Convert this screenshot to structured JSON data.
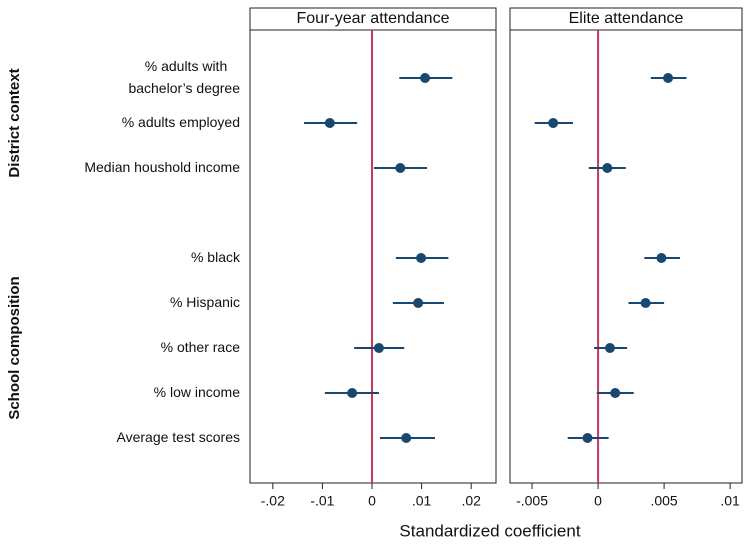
{
  "figure": {
    "xlabel": "Standardized coefficient",
    "categories": [
      "% adults with\nbachelor’s degree",
      "% adults employed",
      "Median houshold income",
      null,
      "% black",
      "% Hispanic",
      "% other race",
      "% low income",
      "Average test scores"
    ],
    "groups": [
      {
        "label": "District context",
        "rows": [
          0,
          2
        ]
      },
      {
        "label": "School composition",
        "rows": [
          4,
          8
        ]
      }
    ]
  },
  "chart_data": [
    {
      "type": "coefplot",
      "title": "Four-year attendance",
      "color": "#1a476f",
      "refline": 0,
      "refline_color": "#c8375f",
      "values": [
        0.0107,
        -0.0085,
        0.0057,
        null,
        0.0099,
        0.0093,
        0.0014,
        -0.004,
        0.0069
      ],
      "lower": [
        0.0055,
        -0.0137,
        0.0004,
        null,
        0.0048,
        0.0042,
        -0.0036,
        -0.0095,
        0.0016
      ],
      "upper": [
        0.0162,
        -0.003,
        0.0111,
        null,
        0.0154,
        0.0145,
        0.0065,
        0.0014,
        0.0127
      ],
      "xlim": [
        -0.0246,
        0.025
      ],
      "xticks": [
        {
          "value": -0.02,
          "label": "-.02"
        },
        {
          "value": -0.01,
          "label": "-.01"
        },
        0,
        {
          "value": 0.01,
          "label": ".01"
        },
        {
          "value": 0.02,
          "label": ".02"
        }
      ]
    },
    {
      "type": "coefplot",
      "title": "Elite attendance",
      "color": "#1a476f",
      "refline": 0,
      "refline_color": "#c8375f",
      "values": [
        0.0053,
        -0.0034,
        0.0007,
        null,
        0.0048,
        0.0036,
        0.0009,
        0.0013,
        -0.0008
      ],
      "lower": [
        0.004,
        -0.0048,
        -0.0007,
        null,
        0.0035,
        0.0023,
        -0.0003,
        -0.0001,
        -0.0023
      ],
      "upper": [
        0.0067,
        -0.0019,
        0.0021,
        null,
        0.0062,
        0.005,
        0.0022,
        0.0027,
        0.0008
      ],
      "xlim": [
        -0.00667,
        0.0109
      ],
      "xticks": [
        {
          "value": -0.005,
          "label": "-.005"
        },
        0,
        {
          "value": 0.005,
          "label": ".005"
        },
        {
          "value": 0.01,
          "label": ".01"
        }
      ]
    }
  ]
}
